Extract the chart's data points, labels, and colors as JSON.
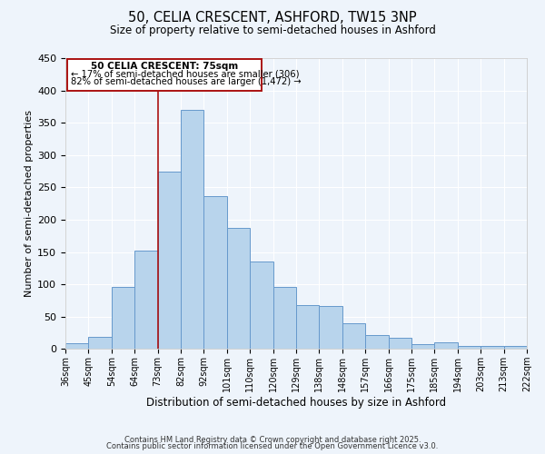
{
  "title_line1": "50, CELIA CRESCENT, ASHFORD, TW15 3NP",
  "title_line2": "Size of property relative to semi-detached houses in Ashford",
  "xlabel": "Distribution of semi-detached houses by size in Ashford",
  "ylabel": "Number of semi-detached properties",
  "bin_labels": [
    "36sqm",
    "45sqm",
    "54sqm",
    "64sqm",
    "73sqm",
    "82sqm",
    "92sqm",
    "101sqm",
    "110sqm",
    "120sqm",
    "129sqm",
    "138sqm",
    "148sqm",
    "157sqm",
    "166sqm",
    "175sqm",
    "185sqm",
    "194sqm",
    "203sqm",
    "213sqm",
    "222sqm"
  ],
  "bin_values": [
    9,
    18,
    96,
    152,
    275,
    370,
    237,
    187,
    136,
    96,
    68,
    67,
    40,
    22,
    17,
    7,
    10,
    5,
    5,
    5
  ],
  "bar_color": "#b8d4ec",
  "bar_edge_color": "#6699cc",
  "bg_color": "#eef4fb",
  "grid_color": "#ffffff",
  "vline_color": "#aa1111",
  "vline_x": 4,
  "annotation_title": "50 CELIA CRESCENT: 75sqm",
  "annotation_line1": "← 17% of semi-detached houses are smaller (306)",
  "annotation_line2": "82% of semi-detached houses are larger (1,472) →",
  "annotation_box_color": "#ffffff",
  "annotation_box_edge_color": "#aa1111",
  "footer_line1": "Contains HM Land Registry data © Crown copyright and database right 2025.",
  "footer_line2": "Contains public sector information licensed under the Open Government Licence v3.0.",
  "ylim": [
    0,
    450
  ],
  "yticks": [
    0,
    50,
    100,
    150,
    200,
    250,
    300,
    350,
    400,
    450
  ]
}
